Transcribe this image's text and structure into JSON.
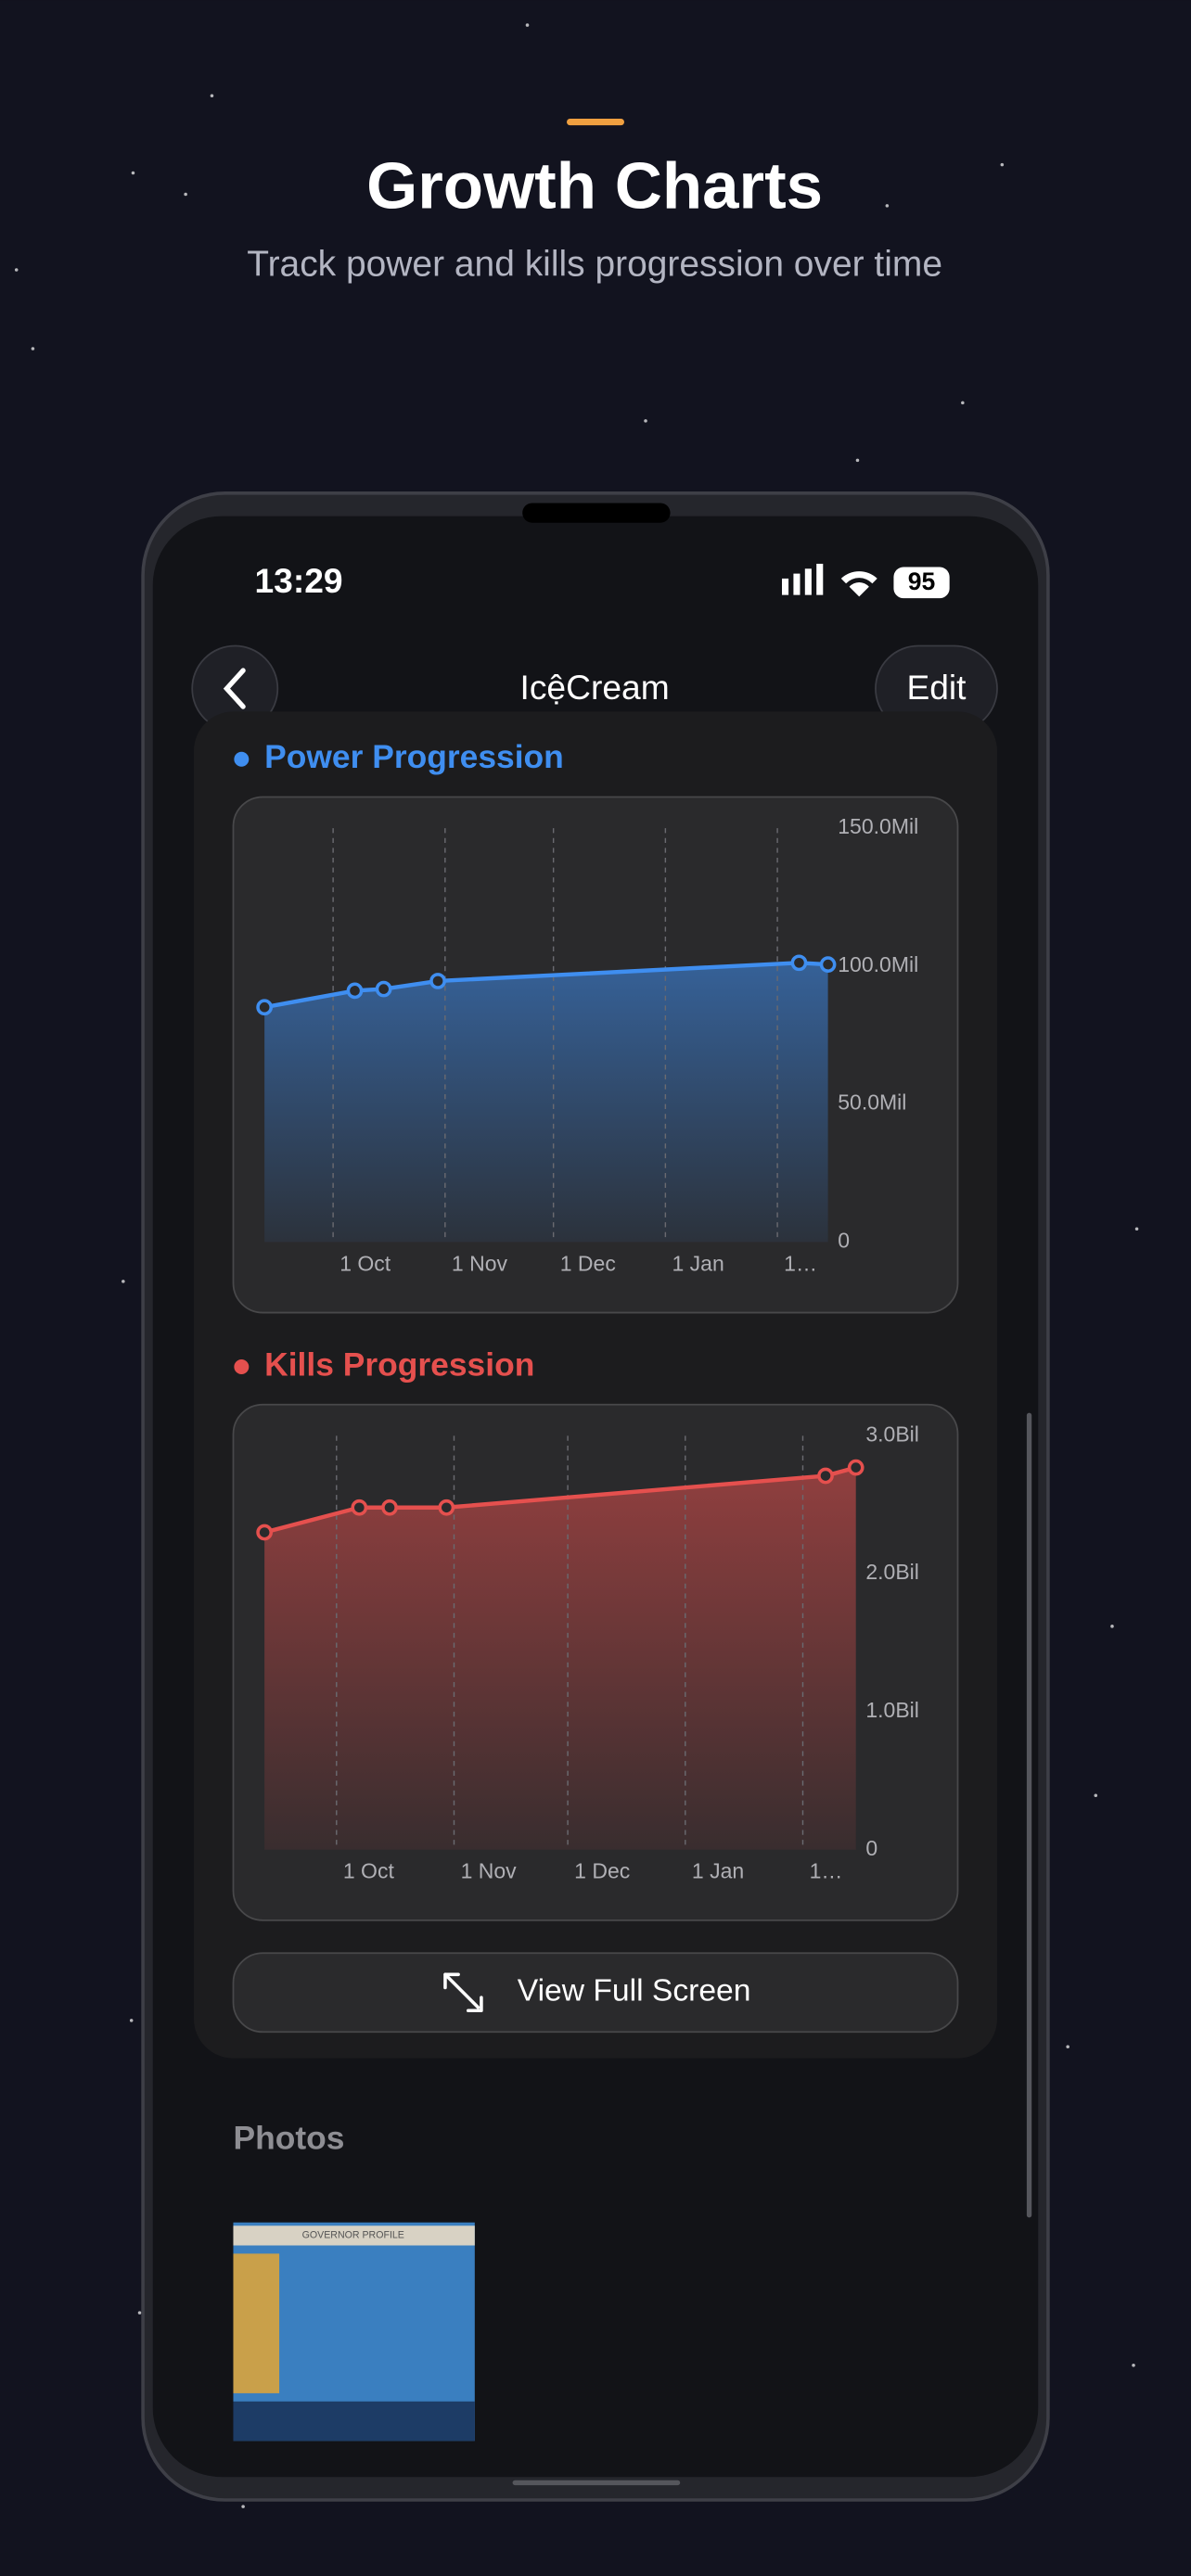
{
  "header": {
    "title": "Growth Charts",
    "subtitle": "Track power and kills progression over time"
  },
  "status_bar": {
    "time": "13:29",
    "battery": "95"
  },
  "nav": {
    "title": "IcệCream",
    "edit": "Edit"
  },
  "chart_data": [
    {
      "type": "line",
      "title": "Power Progression",
      "color": "#3f8ef0",
      "area": true,
      "grid": true,
      "x": [
        -19,
        6,
        14,
        29,
        129,
        137
      ],
      "values": [
        85.1,
        91.1,
        91.7,
        94.6,
        101.2,
        100.6
      ],
      "xlim": [
        -19,
        137
      ],
      "xticks": [
        {
          "value": 0,
          "label": "1 Oct"
        },
        {
          "value": 31,
          "label": "1 Nov"
        },
        {
          "value": 61,
          "label": "1 Dec"
        },
        {
          "value": 92,
          "label": "1 Jan"
        },
        {
          "value": 123,
          "label": "1…"
        }
      ],
      "ylim": [
        0,
        150
      ],
      "yticks": [
        0,
        {
          "value": 50,
          "label": "50.0Mil"
        },
        {
          "value": 100,
          "label": "100.0Mil"
        },
        {
          "value": 150,
          "label": "150.0Mil"
        }
      ]
    },
    {
      "type": "line",
      "title": "Kills Progression",
      "color": "#e5504e",
      "area": true,
      "grid": true,
      "x": [
        -19,
        6,
        14,
        29,
        129,
        137
      ],
      "values": [
        2.3,
        2.48,
        2.48,
        2.48,
        2.71,
        2.77
      ],
      "xlim": [
        -19,
        137
      ],
      "xticks": [
        {
          "value": 0,
          "label": "1 Oct"
        },
        {
          "value": 31,
          "label": "1 Nov"
        },
        {
          "value": 61,
          "label": "1 Dec"
        },
        {
          "value": 92,
          "label": "1 Jan"
        },
        {
          "value": 123,
          "label": "1…"
        }
      ],
      "ylim": [
        0,
        3
      ],
      "yticks": [
        0,
        {
          "value": 1,
          "label": "1.0Bil"
        },
        {
          "value": 2,
          "label": "2.0Bil"
        },
        {
          "value": 3,
          "label": "3.0Bil"
        }
      ]
    }
  ],
  "button": "View Full Screen",
  "photos": {
    "title": "Photos",
    "thumbnail_caption": "GOVERNOR PROFILE"
  }
}
